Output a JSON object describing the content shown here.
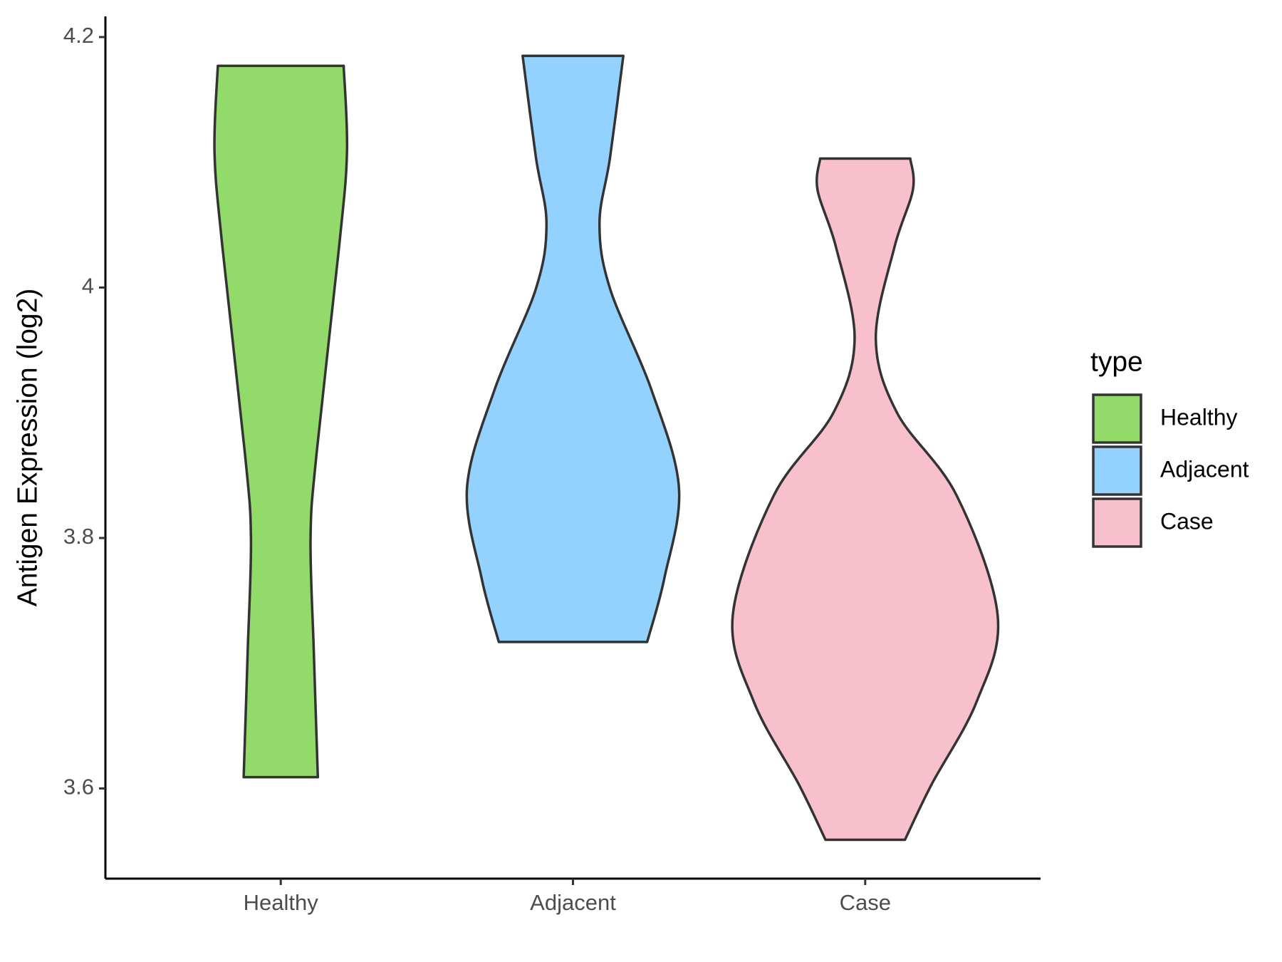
{
  "chart_data": {
    "type": "violin",
    "y_label": "Antigen Expression (log2)",
    "categories": [
      "Healthy",
      "Adjacent",
      "Case"
    ],
    "legend_title": "type",
    "legend": "right",
    "ylim": [
      3.528,
      4.2165
    ],
    "yticks": [
      3.6,
      3.8,
      4.0,
      4.2
    ],
    "series": [
      {
        "name": "Healthy",
        "color": "#92db6a",
        "y": [
          4.177,
          4.108,
          4.032,
          3.867,
          3.8,
          3.708,
          3.609
        ],
        "width": [
          0.475,
          0.5,
          0.44,
          0.27,
          0.225,
          0.25,
          0.28
        ]
      },
      {
        "name": "Adjacent",
        "color": "#93d2fe",
        "y": [
          4.185,
          4.104,
          4.051,
          3.999,
          3.919,
          3.84,
          3.768,
          3.717
        ],
        "width": [
          0.38,
          0.28,
          0.2,
          0.28,
          0.59,
          0.8,
          0.69,
          0.56
        ]
      },
      {
        "name": "Case",
        "color": "#f7c0cc",
        "y": [
          4.103,
          4.078,
          4.032,
          3.959,
          3.9,
          3.834,
          3.738,
          3.669,
          3.603,
          3.559
        ],
        "width": [
          0.34,
          0.36,
          0.22,
          0.08,
          0.24,
          0.69,
          1.0,
          0.84,
          0.5,
          0.3
        ]
      }
    ]
  }
}
